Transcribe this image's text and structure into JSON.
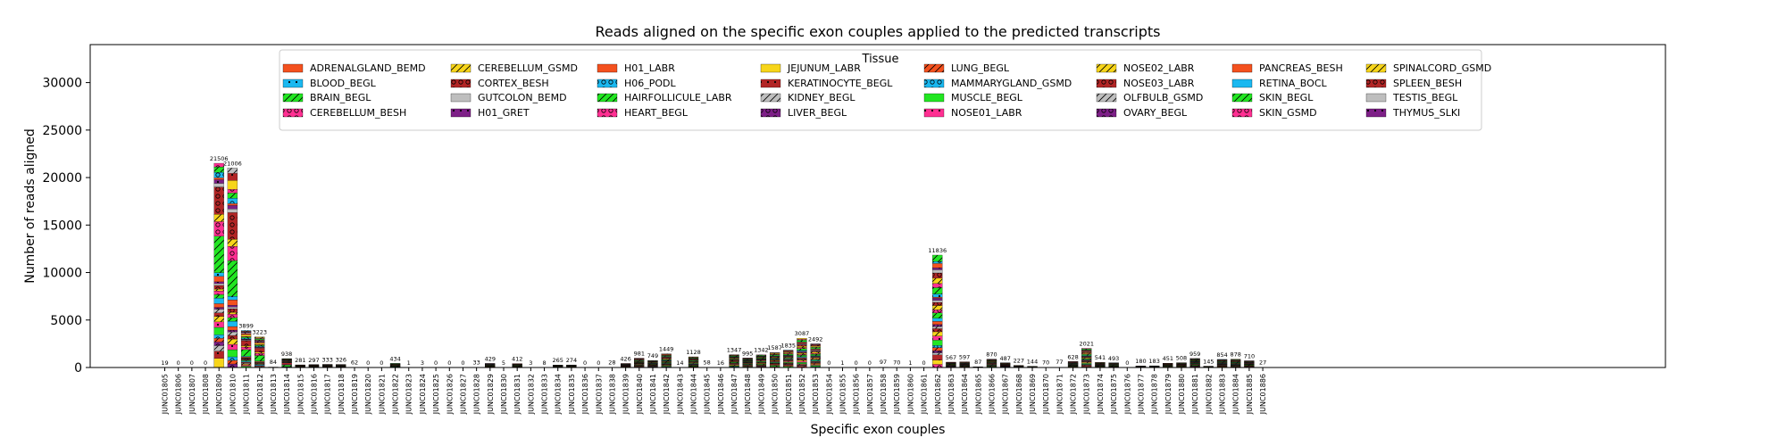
{
  "chart_data": {
    "type": "bar",
    "stacked": true,
    "title": "Reads aligned on the specific exon couples applied to the predicted transcripts",
    "xlabel": "Specific exon couples",
    "ylabel": "Number of reads aligned",
    "ylim": [
      0,
      34000
    ],
    "yticks": [
      0,
      5000,
      10000,
      15000,
      20000,
      25000,
      30000
    ],
    "legend_title": "Tissue",
    "legend_placement": "top-center",
    "categories": [
      "JUNC01805",
      "JUNC01806",
      "JUNC01807",
      "JUNC01808",
      "JUNC01809",
      "JUNC01810",
      "JUNC01811",
      "JUNC01812",
      "JUNC01813",
      "JUNC01814",
      "JUNC01815",
      "JUNC01816",
      "JUNC01817",
      "JUNC01818",
      "JUNC01819",
      "JUNC01820",
      "JUNC01821",
      "JUNC01822",
      "JUNC01823",
      "JUNC01824",
      "JUNC01825",
      "JUNC01826",
      "JUNC01827",
      "JUNC01828",
      "JUNC01829",
      "JUNC01830",
      "JUNC01831",
      "JUNC01832",
      "JUNC01833",
      "JUNC01834",
      "JUNC01835",
      "JUNC01836",
      "JUNC01837",
      "JUNC01838",
      "JUNC01839",
      "JUNC01840",
      "JUNC01841",
      "JUNC01842",
      "JUNC01843",
      "JUNC01844",
      "JUNC01845",
      "JUNC01846",
      "JUNC01847",
      "JUNC01848",
      "JUNC01849",
      "JUNC01850",
      "JUNC01851",
      "JUNC01852",
      "JUNC01853",
      "JUNC01854",
      "JUNC01855",
      "JUNC01856",
      "JUNC01857",
      "JUNC01858",
      "JUNC01859",
      "JUNC01860",
      "JUNC01861",
      "JUNC01862",
      "JUNC01863",
      "JUNC01864",
      "JUNC01865",
      "JUNC01866",
      "JUNC01867",
      "JUNC01868",
      "JUNC01869",
      "JUNC01870",
      "JUNC01871",
      "JUNC01872",
      "JUNC01873",
      "JUNC01874",
      "JUNC01875",
      "JUNC01876",
      "JUNC01877",
      "JUNC01878",
      "JUNC01879",
      "JUNC01880",
      "JUNC01881",
      "JUNC01882",
      "JUNC01883",
      "JUNC01884",
      "JUNC01885",
      "JUNC01886"
    ],
    "totals": [
      19,
      0,
      0,
      0,
      21506,
      21006,
      3899,
      3223,
      84,
      938,
      281,
      297,
      333,
      326,
      62,
      0,
      0,
      434,
      1,
      3,
      0,
      0,
      0,
      33,
      429,
      5,
      412,
      3,
      8,
      265,
      274,
      0,
      0,
      28,
      426,
      981,
      749,
      1449,
      14,
      1128,
      58,
      16,
      1347,
      995,
      1342,
      1587,
      1835,
      3087,
      2492,
      0,
      1,
      0,
      0,
      97,
      70,
      1,
      0,
      11836,
      567,
      597,
      87,
      870,
      487,
      227,
      144,
      70,
      77,
      628,
      2021,
      541,
      493,
      0,
      180,
      183,
      451,
      508,
      959,
      145,
      854,
      878,
      710,
      27
    ],
    "series": [
      {
        "name": "ADRENALGLAND_BEMD",
        "color": "#f4511e",
        "hatch": "none"
      },
      {
        "name": "BLOOD_BEGL",
        "color": "#1ab8f0",
        "hatch": "dot"
      },
      {
        "name": "BRAIN_BEGL",
        "color": "#22e622",
        "hatch": "slash"
      },
      {
        "name": "CEREBELLUM_BESH",
        "color": "#ff2f92",
        "hatch": "circle"
      },
      {
        "name": "CEREBELLUM_GSMD",
        "color": "#f7d51a",
        "hatch": "slash"
      },
      {
        "name": "CORTEX_BESH",
        "color": "#b22626",
        "hatch": "circle"
      },
      {
        "name": "GUTCOLON_BEMD",
        "color": "#bebebe",
        "hatch": "none"
      },
      {
        "name": "H01_GRET",
        "color": "#7d1f87",
        "hatch": "dot"
      },
      {
        "name": "H01_LABR",
        "color": "#f4511e",
        "hatch": "none"
      },
      {
        "name": "H06_PODL",
        "color": "#1ab8f0",
        "hatch": "circle"
      },
      {
        "name": "HAIRFOLLICULE_LABR",
        "color": "#22e622",
        "hatch": "slash"
      },
      {
        "name": "HEART_BEGL",
        "color": "#ff2f92",
        "hatch": "circle"
      },
      {
        "name": "JEJUNUM_LABR",
        "color": "#f7d51a",
        "hatch": "none"
      },
      {
        "name": "KERATINOCYTE_BEGL",
        "color": "#b22626",
        "hatch": "dot"
      },
      {
        "name": "KIDNEY_BEGL",
        "color": "#bebebe",
        "hatch": "slash"
      },
      {
        "name": "LIVER_BEGL",
        "color": "#7d1f87",
        "hatch": "circle"
      },
      {
        "name": "LUNG_BEGL",
        "color": "#f4511e",
        "hatch": "slash"
      },
      {
        "name": "MAMMARYGLAND_GSMD",
        "color": "#1ab8f0",
        "hatch": "circle"
      },
      {
        "name": "MUSCLE_BEGL",
        "color": "#22e622",
        "hatch": "none"
      },
      {
        "name": "NOSE01_LABR",
        "color": "#ff2f92",
        "hatch": "dot"
      },
      {
        "name": "NOSE02_LABR",
        "color": "#f7d51a",
        "hatch": "slash"
      },
      {
        "name": "NOSE03_LABR",
        "color": "#b22626",
        "hatch": "circle"
      },
      {
        "name": "OLFBULB_GSMD",
        "color": "#bebebe",
        "hatch": "slash"
      },
      {
        "name": "OVARY_BEGL",
        "color": "#7d1f87",
        "hatch": "circle"
      },
      {
        "name": "PANCREAS_BESH",
        "color": "#f4511e",
        "hatch": "none"
      },
      {
        "name": "RETINA_BOCL",
        "color": "#1ab8f0",
        "hatch": "none"
      },
      {
        "name": "SKIN_BEGL",
        "color": "#22e622",
        "hatch": "slash"
      },
      {
        "name": "SKIN_GSMD",
        "color": "#ff2f92",
        "hatch": "circle"
      },
      {
        "name": "SPINALCORD_GSMD",
        "color": "#f7d51a",
        "hatch": "slash"
      },
      {
        "name": "SPLEEN_BESH",
        "color": "#b22626",
        "hatch": "circle"
      },
      {
        "name": "TESTIS_BEGL",
        "color": "#bebebe",
        "hatch": "none"
      },
      {
        "name": "THYMUS_SLKI",
        "color": "#7d1f87",
        "hatch": "dot"
      }
    ]
  }
}
